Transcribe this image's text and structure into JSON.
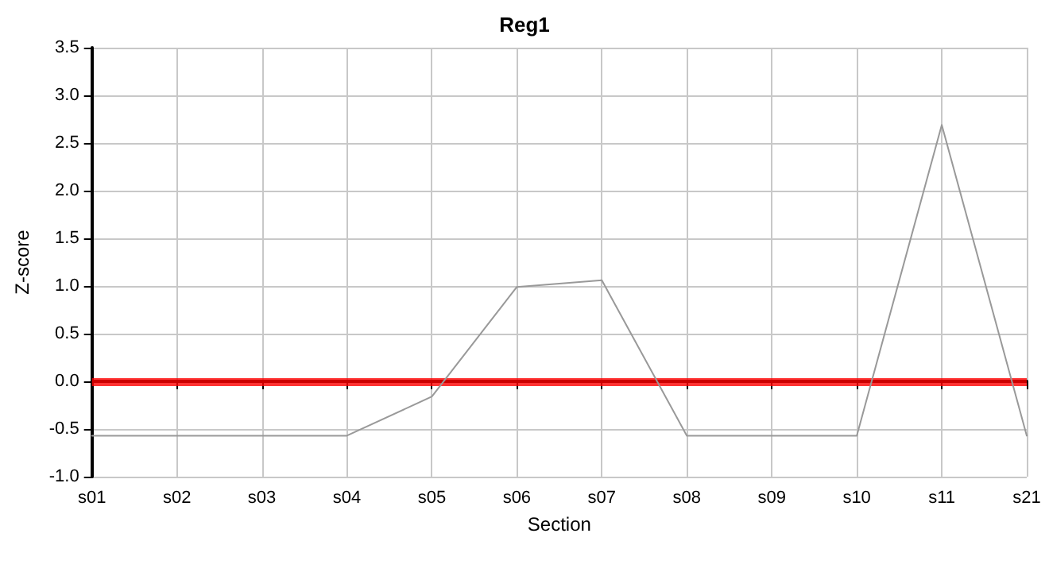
{
  "chart_data": {
    "type": "line",
    "title": "Reg1",
    "xlabel": "Section",
    "ylabel": "Z-score",
    "categories": [
      "s01",
      "s02",
      "s03",
      "s04",
      "s05",
      "s06",
      "s07",
      "s08",
      "s09",
      "s10",
      "s11",
      "s21"
    ],
    "series": [
      {
        "color": "#999999",
        "values": [
          -0.57,
          -0.57,
          -0.57,
          -0.57,
          -0.16,
          0.99,
          1.06,
          -0.57,
          -0.57,
          -0.57,
          2.69,
          -0.57
        ]
      }
    ],
    "ylim": [
      -1,
      3.5
    ],
    "yticks": [
      {
        "value": -1,
        "label": "-1.0"
      },
      -0.5,
      {
        "value": 0,
        "label": "0.0"
      },
      0.5,
      {
        "value": 1,
        "label": "1.0"
      },
      1.5,
      {
        "value": 2,
        "label": "2.0"
      },
      2.5,
      {
        "value": 3,
        "label": "3.0"
      },
      3.5
    ],
    "ref_lines": [
      {
        "axis": "y",
        "value": 0,
        "color": "#ff0000"
      }
    ],
    "grid": true,
    "marker": "none",
    "line_style": "solid"
  }
}
